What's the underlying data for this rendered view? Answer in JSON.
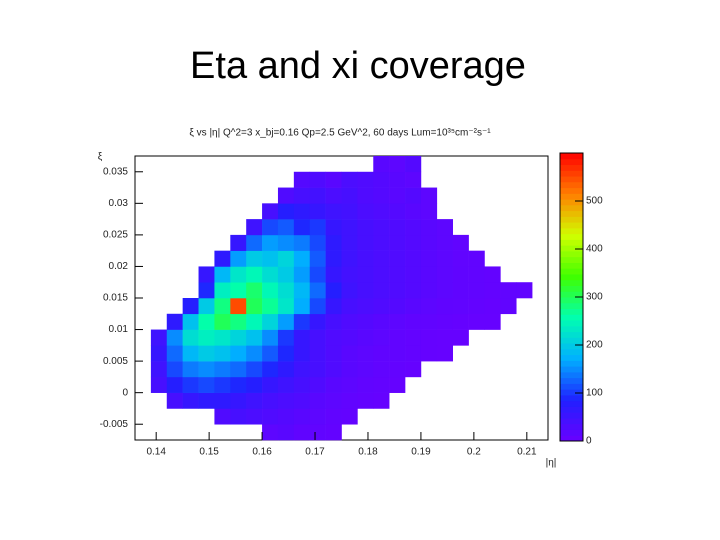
{
  "slide_title": "Eta and xi coverage",
  "chart_data": {
    "type": "heatmap",
    "title": "ξ vs |η| Q^2=3 x_bj=0.16 Qp=2.5 GeV^2, 60 days Lum=10³⁵cm⁻²s⁻¹",
    "x_label": "|η|",
    "y_label": "ξ",
    "xlim": [
      0.136,
      0.214
    ],
    "ylim": [
      -0.0075,
      0.0375
    ],
    "xticks": [
      0.14,
      0.15,
      0.16,
      0.17,
      0.18,
      0.19,
      0.2,
      0.21
    ],
    "yticks": [
      -0.005,
      0,
      0.005,
      0.01,
      0.015,
      0.02,
      0.025,
      0.03,
      0.035
    ],
    "zlim": [
      0,
      600
    ],
    "zticks": [
      0,
      100,
      200,
      300,
      400,
      500
    ],
    "colors": [
      "#6a00ff",
      "#2020ff",
      "#00b0ff",
      "#00ffb0",
      "#40ff00",
      "#d0ff00",
      "#ff8000",
      "#ff0000"
    ],
    "xbins": [
      0.136,
      0.139,
      0.142,
      0.145,
      0.148,
      0.151,
      0.154,
      0.157,
      0.16,
      0.163,
      0.166,
      0.169,
      0.172,
      0.175,
      0.178,
      0.181,
      0.184,
      0.187,
      0.19,
      0.193,
      0.196,
      0.199,
      0.202,
      0.205,
      0.208,
      0.211,
      0.214
    ],
    "ybins": [
      -0.0075,
      -0.005,
      -0.0025,
      0,
      0.0025,
      0.005,
      0.0075,
      0.01,
      0.0125,
      0.015,
      0.0175,
      0.02,
      0.0225,
      0.025,
      0.0275,
      0.03,
      0.0325,
      0.035,
      0.0375
    ],
    "z": [
      [
        null,
        null,
        null,
        null,
        null,
        null,
        null,
        null,
        15,
        20,
        12,
        10,
        8,
        null,
        null,
        null,
        null,
        null,
        null,
        null,
        null,
        null,
        null,
        null,
        null,
        null
      ],
      [
        null,
        null,
        null,
        null,
        null,
        30,
        40,
        35,
        30,
        25,
        20,
        15,
        10,
        8,
        null,
        null,
        null,
        null,
        null,
        null,
        null,
        null,
        null,
        null,
        null,
        null
      ],
      [
        null,
        null,
        40,
        60,
        70,
        70,
        60,
        50,
        40,
        35,
        30,
        20,
        15,
        10,
        8,
        6,
        null,
        null,
        null,
        null,
        null,
        null,
        null,
        null,
        null,
        null
      ],
      [
        null,
        40,
        80,
        100,
        110,
        100,
        90,
        80,
        60,
        50,
        40,
        30,
        20,
        15,
        10,
        8,
        6,
        null,
        null,
        null,
        null,
        null,
        null,
        null,
        null,
        null
      ],
      [
        null,
        50,
        110,
        140,
        150,
        140,
        130,
        110,
        90,
        70,
        50,
        40,
        30,
        20,
        15,
        10,
        8,
        6,
        null,
        null,
        null,
        null,
        null,
        null,
        null,
        null
      ],
      [
        null,
        60,
        130,
        180,
        200,
        190,
        170,
        150,
        120,
        90,
        60,
        40,
        30,
        20,
        15,
        12,
        10,
        8,
        6,
        5,
        null,
        null,
        null,
        null,
        null,
        null
      ],
      [
        null,
        50,
        150,
        220,
        240,
        230,
        210,
        190,
        150,
        100,
        60,
        40,
        30,
        25,
        20,
        15,
        10,
        8,
        6,
        5,
        5,
        null,
        null,
        null,
        null,
        null
      ],
      [
        null,
        null,
        70,
        190,
        260,
        300,
        280,
        250,
        210,
        160,
        100,
        60,
        40,
        30,
        25,
        20,
        15,
        12,
        10,
        8,
        6,
        5,
        5,
        null,
        null,
        null
      ],
      [
        null,
        null,
        null,
        80,
        200,
        280,
        550,
        300,
        270,
        230,
        170,
        110,
        60,
        40,
        35,
        30,
        25,
        20,
        15,
        12,
        10,
        8,
        6,
        10,
        null,
        null
      ],
      [
        null,
        null,
        null,
        null,
        90,
        240,
        260,
        290,
        250,
        220,
        180,
        130,
        80,
        50,
        40,
        35,
        30,
        25,
        20,
        15,
        12,
        10,
        8,
        10,
        10,
        null
      ],
      [
        null,
        null,
        null,
        null,
        60,
        180,
        230,
        250,
        220,
        200,
        160,
        110,
        60,
        45,
        40,
        35,
        30,
        25,
        20,
        15,
        12,
        10,
        8,
        null,
        null,
        null
      ],
      [
        null,
        null,
        null,
        null,
        null,
        70,
        160,
        200,
        190,
        210,
        170,
        120,
        70,
        50,
        40,
        35,
        30,
        25,
        20,
        15,
        10,
        10,
        null,
        null,
        null,
        null
      ],
      [
        null,
        null,
        null,
        null,
        null,
        null,
        60,
        130,
        160,
        150,
        140,
        110,
        70,
        50,
        40,
        35,
        30,
        25,
        20,
        15,
        10,
        null,
        null,
        null,
        null,
        null
      ],
      [
        null,
        null,
        null,
        null,
        null,
        null,
        null,
        50,
        110,
        120,
        90,
        100,
        60,
        50,
        40,
        35,
        30,
        25,
        20,
        15,
        null,
        null,
        null,
        null,
        null,
        null
      ],
      [
        null,
        null,
        null,
        null,
        null,
        null,
        null,
        null,
        40,
        80,
        70,
        60,
        50,
        45,
        35,
        30,
        25,
        20,
        15,
        null,
        null,
        null,
        null,
        null,
        null,
        null
      ],
      [
        null,
        null,
        null,
        null,
        null,
        null,
        null,
        null,
        null,
        30,
        40,
        45,
        35,
        40,
        30,
        25,
        20,
        25,
        15,
        null,
        null,
        null,
        null,
        null,
        null,
        null
      ],
      [
        null,
        null,
        null,
        null,
        null,
        null,
        null,
        null,
        null,
        null,
        25,
        30,
        20,
        35,
        30,
        25,
        20,
        15,
        null,
        null,
        null,
        null,
        null,
        null,
        null,
        null
      ],
      [
        null,
        null,
        null,
        null,
        null,
        null,
        null,
        null,
        null,
        null,
        null,
        null,
        null,
        null,
        null,
        20,
        15,
        25,
        null,
        null,
        null,
        null,
        null,
        null,
        null,
        null
      ]
    ]
  }
}
